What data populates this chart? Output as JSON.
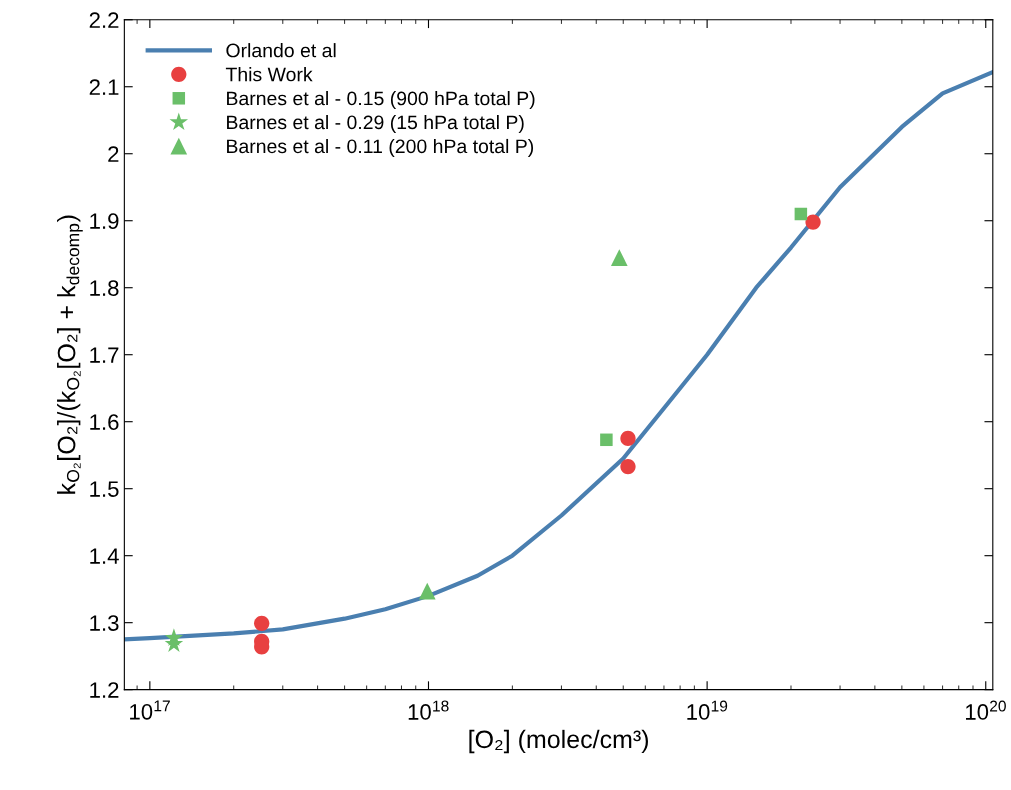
{
  "chart_data": {
    "type": "scatter",
    "xlabel": "[O₂] (molec/cm³)",
    "ylabel": "k$_{O₂}$[O₂]/(k$_{O₂}$[O₂] + k$_{decomp}$)",
    "log": "x",
    "grid": false,
    "legend": "top left",
    "xlim": [
      8.1e+16,
      1.06e+20
    ],
    "xticks": [
      {
        "value": 1e+17,
        "label": "10$^{17}$"
      },
      {
        "value": 1e+18,
        "label": "10$^{18}$"
      },
      {
        "value": 1e+19,
        "label": "10$^{19}$"
      },
      {
        "value": 1e+20,
        "label": "10$^{20}$"
      }
    ],
    "ylim": [
      1.2,
      2.2
    ],
    "yticks": [
      1.2,
      1.3,
      1.4,
      1.5,
      1.6,
      1.7,
      1.8,
      1.9,
      2,
      2.1,
      2.2
    ],
    "series": [
      {
        "name": "Orlando et al",
        "type": "line",
        "marker": "none",
        "line_style": "solid",
        "color": "#4a7fb0",
        "x": [
          8.1e+16,
          1e+17,
          2e+17,
          3e+17,
          5e+17,
          7e+17,
          1e+18,
          1.5e+18,
          2e+18,
          3e+18,
          5e+18,
          7e+18,
          1e+19,
          1.5e+19,
          2e+19,
          3e+19,
          5e+19,
          7e+19,
          1.06e+20
        ],
        "values": [
          1.275,
          1.277,
          1.284,
          1.29,
          1.306,
          1.32,
          1.34,
          1.37,
          1.4,
          1.46,
          1.545,
          1.62,
          1.7,
          1.8,
          1.86,
          1.95,
          2.04,
          2.09,
          2.122
        ]
      },
      {
        "name": "This Work",
        "marker": "circle",
        "color": "#e84040",
        "x": [
          2.52e+17,
          2.52e+17,
          2.52e+17,
          5.2e+18,
          5.2e+18,
          2.4e+19
        ],
        "values": [
          1.299,
          1.272,
          1.264,
          1.575,
          1.533,
          1.898
        ]
      },
      {
        "name": "Barnes et al - 0.15 (900 hPa total P)",
        "marker": "square",
        "color": "#6abf69",
        "x": [
          4.35e+18,
          2.17e+19
        ],
        "values": [
          1.573,
          1.91
        ]
      },
      {
        "name": "Barnes et al - 0.29 (15 hPa total P)",
        "marker": "star",
        "color": "#6abf69",
        "x": [
          1.22e+17,
          1.22e+17
        ],
        "values": [
          1.277,
          1.268
        ]
      },
      {
        "name": "Barnes et al - 0.11 (200 hPa total P)",
        "marker": "triangle",
        "color": "#6abf69",
        "x": [
          9.9e+17,
          4.84e+18
        ],
        "values": [
          1.347,
          1.845
        ]
      }
    ]
  }
}
